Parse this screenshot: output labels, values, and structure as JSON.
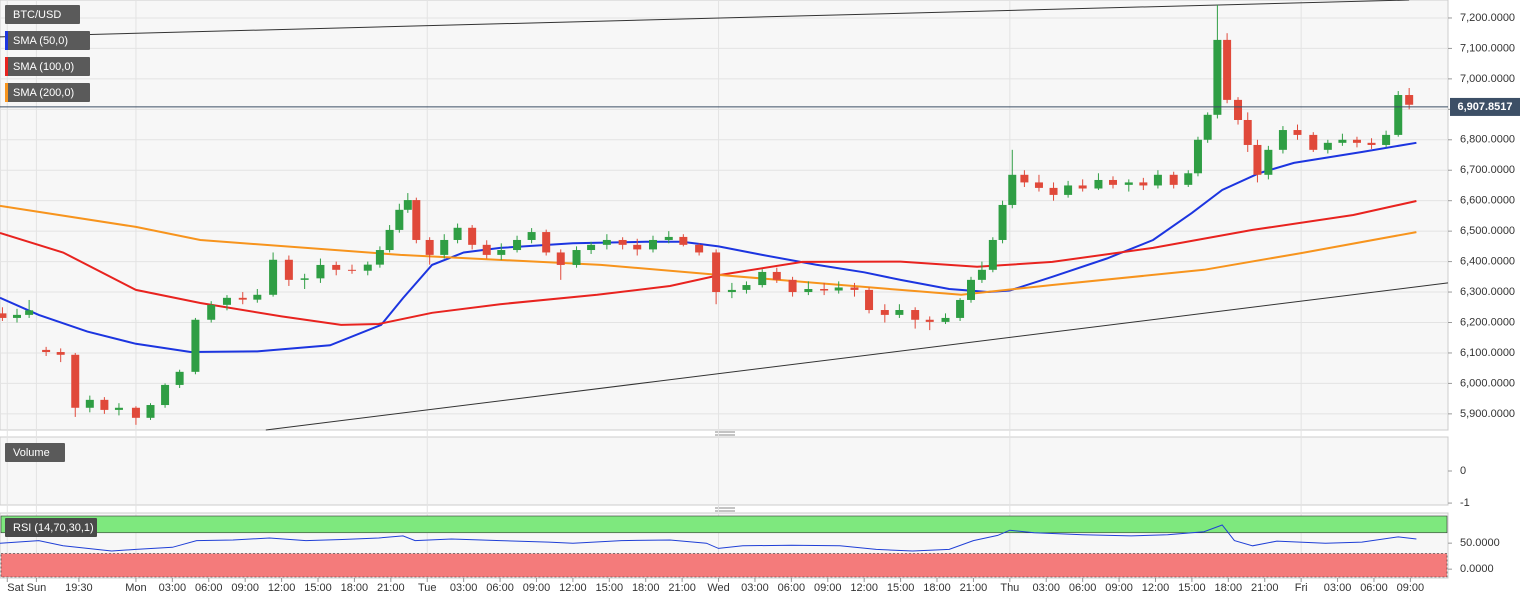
{
  "chart_data": [
    {
      "type": "candlestick",
      "title": "BTC/USD",
      "xlim": [
        -11.2,
        108.1
      ],
      "ylim": [
        5847,
        7259
      ],
      "xticks": [
        {
          "value": -10.6,
          "label": "Sat"
        },
        {
          "value": -8.2,
          "label": "Sun"
        },
        {
          "value": -4.7,
          "label": "19:30"
        },
        {
          "value": 0,
          "label": "Mon"
        },
        {
          "value": 3,
          "label": "03:00"
        },
        {
          "value": 6,
          "label": "06:00"
        },
        {
          "value": 9,
          "label": "09:00"
        },
        {
          "value": 12,
          "label": "12:00"
        },
        {
          "value": 15,
          "label": "15:00"
        },
        {
          "value": 18,
          "label": "18:00"
        },
        {
          "value": 21,
          "label": "21:00"
        },
        {
          "value": 24,
          "label": "Tue"
        },
        {
          "value": 27,
          "label": "03:00"
        },
        {
          "value": 30,
          "label": "06:00"
        },
        {
          "value": 33,
          "label": "09:00"
        },
        {
          "value": 36,
          "label": "12:00"
        },
        {
          "value": 39,
          "label": "15:00"
        },
        {
          "value": 42,
          "label": "18:00"
        },
        {
          "value": 45,
          "label": "21:00"
        },
        {
          "value": 48,
          "label": "Wed"
        },
        {
          "value": 51,
          "label": "03:00"
        },
        {
          "value": 54,
          "label": "06:00"
        },
        {
          "value": 57,
          "label": "09:00"
        },
        {
          "value": 60,
          "label": "12:00"
        },
        {
          "value": 63,
          "label": "15:00"
        },
        {
          "value": 66,
          "label": "18:00"
        },
        {
          "value": 69,
          "label": "21:00"
        },
        {
          "value": 72,
          "label": "Thu"
        },
        {
          "value": 75,
          "label": "03:00"
        },
        {
          "value": 78,
          "label": "06:00"
        },
        {
          "value": 81,
          "label": "09:00"
        },
        {
          "value": 84,
          "label": "12:00"
        },
        {
          "value": 87,
          "label": "15:00"
        },
        {
          "value": 90,
          "label": "18:00"
        },
        {
          "value": 93,
          "label": "21:00"
        },
        {
          "value": 96,
          "label": "Fri"
        },
        {
          "value": 99,
          "label": "03:00"
        },
        {
          "value": 102,
          "label": "06:00"
        },
        {
          "value": 105,
          "label": "09:00"
        }
      ],
      "yticks": [
        {
          "value": 5900,
          "label": "5,900.0000"
        },
        {
          "value": 6000,
          "label": "6,000.0000"
        },
        {
          "value": 6100,
          "label": "6,100.0000"
        },
        {
          "value": 6200,
          "label": "6,200.0000"
        },
        {
          "value": 6300,
          "label": "6,300.0000"
        },
        {
          "value": 6400,
          "label": "6,400.0000"
        },
        {
          "value": 6500,
          "label": "6,500.0000"
        },
        {
          "value": 6600,
          "label": "6,600.0000"
        },
        {
          "value": 6700,
          "label": "6,700.0000"
        },
        {
          "value": 6800,
          "label": "6,800.0000"
        },
        {
          "value": 6900,
          "label": "6,900.0000"
        },
        {
          "value": 7000,
          "label": "7,000.0000"
        },
        {
          "value": 7100,
          "label": "7,100.0000"
        },
        {
          "value": 7200,
          "label": "7,200.0000"
        }
      ],
      "grid": true,
      "up_color": "#2f9e44",
      "down_color": "#e0493a",
      "x": [
        -11,
        -9.8,
        -8.8,
        -7.4,
        -6.2,
        -5.0,
        -3.8,
        -2.6,
        -1.4,
        0.0,
        1.2,
        2.4,
        3.6,
        4.9,
        6.2,
        7.5,
        8.8,
        10.0,
        11.3,
        12.6,
        13.9,
        15.2,
        16.5,
        17.8,
        19.1,
        20.1,
        20.9,
        21.7,
        22.4,
        23.1,
        24.2,
        25.4,
        26.5,
        27.7,
        28.9,
        30.1,
        31.4,
        32.6,
        33.8,
        35.0,
        36.3,
        37.5,
        38.8,
        40.1,
        41.3,
        42.6,
        43.9,
        45.1,
        46.4,
        47.8,
        49.1,
        50.3,
        51.6,
        52.8,
        54.1,
        55.4,
        56.7,
        57.9,
        59.2,
        60.4,
        61.7,
        62.9,
        64.2,
        65.4,
        66.7,
        67.9,
        68.8,
        69.7,
        70.6,
        71.4,
        72.2,
        73.2,
        74.4,
        75.6,
        76.8,
        78.0,
        79.3,
        80.5,
        81.8,
        83.0,
        84.2,
        85.5,
        86.7,
        87.5,
        88.3,
        89.1,
        89.9,
        90.8,
        91.6,
        92.4,
        93.3,
        94.5,
        95.7,
        97.0,
        98.2,
        99.4,
        100.6,
        101.8,
        103.0,
        104.0,
        104.9
      ],
      "open": [
        6230,
        6215,
        6225,
        6110,
        6103,
        6094,
        5920,
        5946,
        5913,
        5920,
        5887,
        5929,
        5995,
        6038,
        6209,
        6258,
        6281,
        6275,
        6291,
        6406,
        6340,
        6345,
        6389,
        6373,
        6370,
        6390,
        6438,
        6504,
        6570,
        6602,
        6471,
        6422,
        6471,
        6511,
        6455,
        6422,
        6438,
        6471,
        6497,
        6430,
        6389,
        6438,
        6455,
        6471,
        6455,
        6440,
        6471,
        6481,
        6455,
        6430,
        6300,
        6307,
        6323,
        6366,
        6340,
        6300,
        6310,
        6305,
        6315,
        6307,
        6241,
        6225,
        6241,
        6209,
        6202,
        6215,
        6274,
        6340,
        6373,
        6471,
        6586,
        6685,
        6660,
        6642,
        6619,
        6650,
        6640,
        6668,
        6652,
        6660,
        6650,
        6685,
        6652,
        6690,
        6800,
        6882,
        7128,
        6931,
        6865,
        6783,
        6685,
        6767,
        6832,
        6816,
        6767,
        6790,
        6800,
        6790,
        6783,
        6816,
        6947
      ],
      "high": [
        6250,
        6245,
        6274,
        6120,
        6115,
        6100,
        5960,
        5955,
        5935,
        5925,
        5935,
        6000,
        6045,
        6215,
        6270,
        6290,
        6300,
        6310,
        6430,
        6420,
        6360,
        6410,
        6400,
        6390,
        6400,
        6450,
        6520,
        6590,
        6625,
        6610,
        6480,
        6490,
        6525,
        6520,
        6470,
        6460,
        6485,
        6510,
        6505,
        6440,
        6450,
        6465,
        6490,
        6480,
        6475,
        6485,
        6500,
        6490,
        6460,
        6440,
        6330,
        6335,
        6375,
        6380,
        6350,
        6335,
        6330,
        6335,
        6330,
        6315,
        6260,
        6260,
        6250,
        6220,
        6230,
        6280,
        6350,
        6400,
        6480,
        6600,
        6767,
        6700,
        6685,
        6660,
        6665,
        6670,
        6690,
        6680,
        6670,
        6675,
        6700,
        6695,
        6700,
        6810,
        6890,
        7243,
        7150,
        6940,
        6890,
        6800,
        6780,
        6845,
        6850,
        6825,
        6800,
        6820,
        6810,
        6805,
        6830,
        6960,
        6970
      ],
      "low": [
        6205,
        6200,
        6215,
        6090,
        6070,
        5890,
        5905,
        5900,
        5895,
        5864,
        5880,
        5920,
        5985,
        6030,
        6200,
        6240,
        6260,
        6265,
        6285,
        6320,
        6310,
        6330,
        6355,
        6360,
        6355,
        6380,
        6430,
        6495,
        6560,
        6460,
        6390,
        6410,
        6460,
        6440,
        6410,
        6405,
        6430,
        6460,
        6420,
        6340,
        6380,
        6425,
        6440,
        6440,
        6420,
        6430,
        6460,
        6450,
        6420,
        6260,
        6280,
        6295,
        6315,
        6330,
        6285,
        6290,
        6290,
        6295,
        6285,
        6230,
        6200,
        6215,
        6180,
        6175,
        6195,
        6205,
        6265,
        6330,
        6365,
        6460,
        6575,
        6645,
        6630,
        6600,
        6610,
        6630,
        6635,
        6640,
        6630,
        6635,
        6640,
        6640,
        6645,
        6680,
        6790,
        6870,
        6920,
        6850,
        6760,
        6660,
        6670,
        6755,
        6800,
        6760,
        6755,
        6780,
        6775,
        6770,
        6775,
        6810,
        6900
      ],
      "close": [
        6215,
        6225,
        6240,
        6103,
        6094,
        5920,
        5946,
        5913,
        5920,
        5887,
        5929,
        5995,
        6038,
        6209,
        6258,
        6281,
        6275,
        6291,
        6406,
        6340,
        6345,
        6389,
        6373,
        6370,
        6390,
        6438,
        6504,
        6570,
        6602,
        6471,
        6422,
        6471,
        6511,
        6455,
        6422,
        6438,
        6471,
        6497,
        6430,
        6389,
        6438,
        6455,
        6471,
        6455,
        6440,
        6471,
        6481,
        6455,
        6430,
        6300,
        6307,
        6323,
        6366,
        6340,
        6300,
        6310,
        6305,
        6315,
        6307,
        6241,
        6225,
        6241,
        6209,
        6202,
        6215,
        6274,
        6340,
        6373,
        6471,
        6586,
        6685,
        6660,
        6642,
        6619,
        6650,
        6640,
        6668,
        6652,
        6660,
        6650,
        6685,
        6652,
        6690,
        6800,
        6882,
        7128,
        6931,
        6865,
        6783,
        6685,
        6767,
        6832,
        6816,
        6767,
        6790,
        6800,
        6790,
        6783,
        6816,
        6947,
        6915
      ],
      "series": [
        {
          "name": "SMA (50,0)",
          "color": "#1c35e0",
          "x": [
            -11.2,
            -8,
            -4,
            0,
            4.5,
            10,
            16,
            20.2,
            22,
            24.4,
            27,
            30,
            36,
            42,
            45,
            48,
            51.6,
            56,
            60,
            63,
            67,
            70.2,
            72,
            75.5,
            80,
            83.8,
            87,
            89.5,
            92.5,
            95.4,
            101,
            105.5
          ],
          "values": [
            6281,
            6225,
            6170,
            6130,
            6103,
            6105,
            6125,
            6192,
            6280,
            6389,
            6430,
            6445,
            6460,
            6465,
            6465,
            6450,
            6422,
            6390,
            6365,
            6340,
            6310,
            6300,
            6305,
            6350,
            6410,
            6471,
            6560,
            6635,
            6690,
            6724,
            6760,
            6790
          ]
        },
        {
          "name": "SMA (100,0)",
          "color": "#e8231f",
          "x": [
            -11.2,
            -6,
            0,
            5.3,
            12,
            16.9,
            20,
            24.4,
            30,
            38,
            44,
            48.1,
            54.9,
            63,
            69.3,
            75.5,
            83.8,
            92,
            100.3,
            105.5
          ],
          "values": [
            6494,
            6430,
            6307,
            6264,
            6220,
            6192,
            6195,
            6232,
            6260,
            6291,
            6320,
            6356,
            6399,
            6400,
            6383,
            6399,
            6445,
            6504,
            6553,
            6599
          ]
        },
        {
          "name": "SMA (200,0)",
          "color": "#f7941d",
          "x": [
            -11.2,
            0,
            5.3,
            21.8,
            38.3,
            48.1,
            63,
            68,
            75.5,
            88,
            96,
            105.5
          ],
          "values": [
            6583,
            6514,
            6471,
            6422,
            6389,
            6356,
            6307,
            6291,
            6323,
            6373,
            6428,
            6497
          ]
        }
      ],
      "trendlines": [
        {
          "color": "#333333",
          "x": [
            -11.2,
            104.9
          ],
          "values": [
            7138,
            7259
          ]
        },
        {
          "color": "#333333",
          "x": [
            10.7,
            108.1
          ],
          "values": [
            5847,
            6330
          ]
        }
      ],
      "last_price": {
        "value": 6907.8517,
        "label": "6,907.8517"
      }
    },
    {
      "type": "volume",
      "title": "Volume",
      "ylim": [
        -1.06,
        1.06
      ],
      "yticks": [
        0,
        -1
      ]
    },
    {
      "type": "line",
      "title": "RSI (14,70,30,1)",
      "color": "#1f3fd6",
      "xlim": [
        -11.2,
        108.1
      ],
      "ylim": [
        -17,
        108
      ],
      "yticks": [
        {
          "value": 50,
          "label": "50.0000"
        },
        {
          "value": 0,
          "label": "0.0000"
        }
      ],
      "upper_band": 70,
      "lower_band": 30,
      "upper_color": "#7ee87e",
      "lower_color": "#f47b7b",
      "x": [
        -11.2,
        -8,
        -6,
        -4,
        -2,
        0,
        3,
        5,
        8,
        11,
        14,
        17,
        20,
        22,
        23,
        26,
        30,
        34,
        36,
        40,
        44,
        47,
        48,
        50,
        54,
        58,
        61,
        64,
        67,
        69,
        71,
        72,
        74,
        78,
        82,
        85,
        88,
        89.5,
        90.5,
        92,
        94,
        98,
        101,
        104,
        105.5
      ],
      "values": [
        50,
        55,
        45,
        40,
        35,
        38,
        42,
        55,
        56,
        60,
        55,
        57,
        60,
        64,
        55,
        58,
        55,
        52,
        50,
        55,
        56,
        50,
        40,
        45,
        46,
        45,
        38,
        35,
        38,
        55,
        65,
        75,
        70,
        66,
        64,
        66,
        72,
        85,
        55,
        45,
        54,
        50,
        52,
        62,
        58
      ]
    }
  ]
}
